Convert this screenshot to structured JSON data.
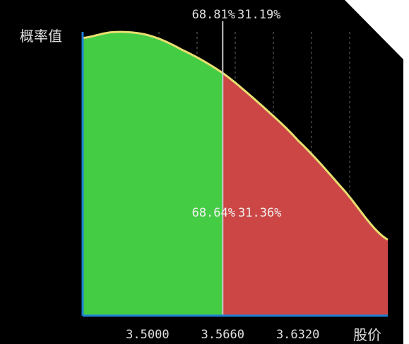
{
  "chart_data": {
    "type": "area",
    "xlabel": "股价",
    "ylabel": "概率值",
    "x_tick_labels": [
      "3.5000",
      "3.5660",
      "3.6320"
    ],
    "x_ticks": [
      3.5,
      3.566,
      3.632
    ],
    "xlim": [
      3.443,
      3.711
    ],
    "ylim": [
      0,
      1
    ],
    "split_x": 3.566,
    "top_left_pct": "68.81%",
    "top_right_pct": "31.19%",
    "mid_left_pct": "68.64%",
    "mid_right_pct": "31.36%",
    "curve": {
      "x": [
        3.443,
        3.47,
        3.5,
        3.53,
        3.566,
        3.6,
        3.632,
        3.67,
        3.711
      ],
      "y": [
        0.95,
        0.97,
        0.96,
        0.91,
        0.83,
        0.72,
        0.6,
        0.44,
        0.26
      ]
    },
    "colors": {
      "left_fill": "#45cc45",
      "right_fill": "#cc4646",
      "curve": "#e8e070",
      "axis": "#1e7fd6",
      "split_line": "#c8c8c8",
      "grid": "#6a6a6a",
      "text": "#e0e0e0"
    },
    "grid": "vertical-dotted"
  }
}
